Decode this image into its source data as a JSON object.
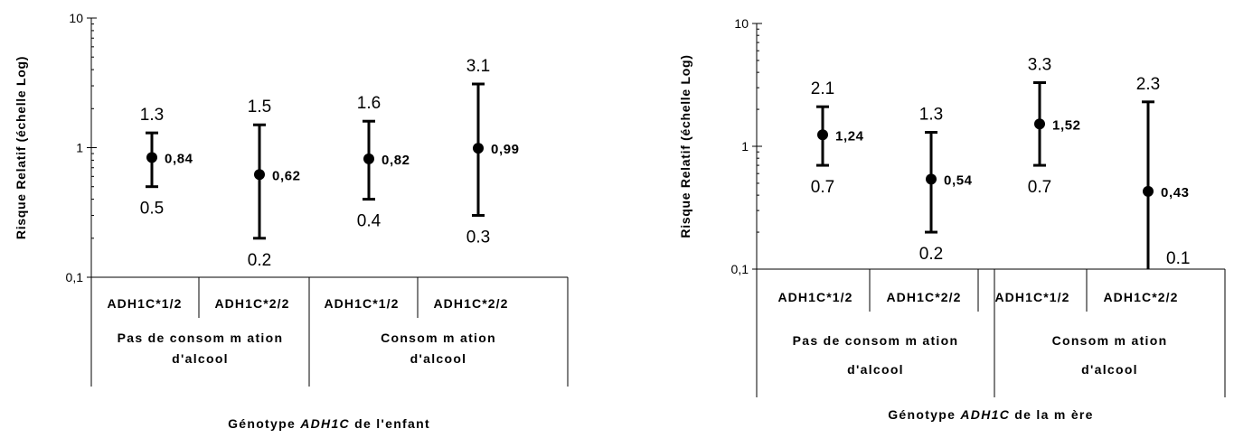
{
  "chart_data": [
    {
      "type": "scatter",
      "ylabel": "Risque Relatif (échelle Log)",
      "xlabel_parts": [
        "Génotype ",
        "ADH1C",
        " de l'enfant"
      ],
      "y_scale": "log",
      "ylim": [
        0.1,
        10
      ],
      "y_ticks": [
        "0,1",
        "1",
        "10"
      ],
      "groups": [
        {
          "label_line1": "Pas de consom m ation",
          "label_line2": "d'alcool"
        },
        {
          "label_line1": "Consom m ation",
          "label_line2": "d'alcool"
        }
      ],
      "points": [
        {
          "category": "ADH1C*1/2",
          "value": 0.84,
          "value_label": "0,84",
          "upper": 1.3,
          "upper_label": "1.3",
          "lower": 0.5,
          "lower_label": "0.5"
        },
        {
          "category": "ADH1C*2/2",
          "value": 0.62,
          "value_label": "0,62",
          "upper": 1.5,
          "upper_label": "1.5",
          "lower": 0.2,
          "lower_label": "0.2"
        },
        {
          "category": "ADH1C*1/2",
          "value": 0.82,
          "value_label": "0,82",
          "upper": 1.6,
          "upper_label": "1.6",
          "lower": 0.4,
          "lower_label": "0.4"
        },
        {
          "category": "ADH1C*2/2",
          "value": 0.99,
          "value_label": "0,99",
          "upper": 3.1,
          "upper_label": "3.1",
          "lower": 0.3,
          "lower_label": "0.3"
        }
      ]
    },
    {
      "type": "scatter",
      "ylabel": "Risque Relatif (échelle Log)",
      "xlabel_parts": [
        "Génotype ",
        "ADH1C",
        " de la m ère"
      ],
      "y_scale": "log",
      "ylim": [
        0.1,
        10
      ],
      "y_ticks": [
        "0,1",
        "1",
        "10"
      ],
      "groups": [
        {
          "label_line1": "Pas de consom m ation",
          "label_line2": "d'alcool"
        },
        {
          "label_line1": "Consom m ation",
          "label_line2": "d'alcool"
        }
      ],
      "points": [
        {
          "category": "ADH1C*1/2",
          "value": 1.24,
          "value_label": "1,24",
          "upper": 2.1,
          "upper_label": "2.1",
          "lower": 0.7,
          "lower_label": "0.7"
        },
        {
          "category": "ADH1C*2/2",
          "value": 0.54,
          "value_label": "0,54",
          "upper": 1.3,
          "upper_label": "1.3",
          "lower": 0.2,
          "lower_label": "0.2"
        },
        {
          "category": "ADH1C*1/2",
          "value": 1.52,
          "value_label": "1,52",
          "upper": 3.3,
          "upper_label": "3.3",
          "lower": 0.7,
          "lower_label": "0.7"
        },
        {
          "category": "ADH1C*2/2",
          "value": 0.43,
          "value_label": "0,43",
          "upper": 2.3,
          "upper_label": "2.3",
          "lower": 0.1,
          "lower_label": "0.1"
        }
      ]
    }
  ]
}
